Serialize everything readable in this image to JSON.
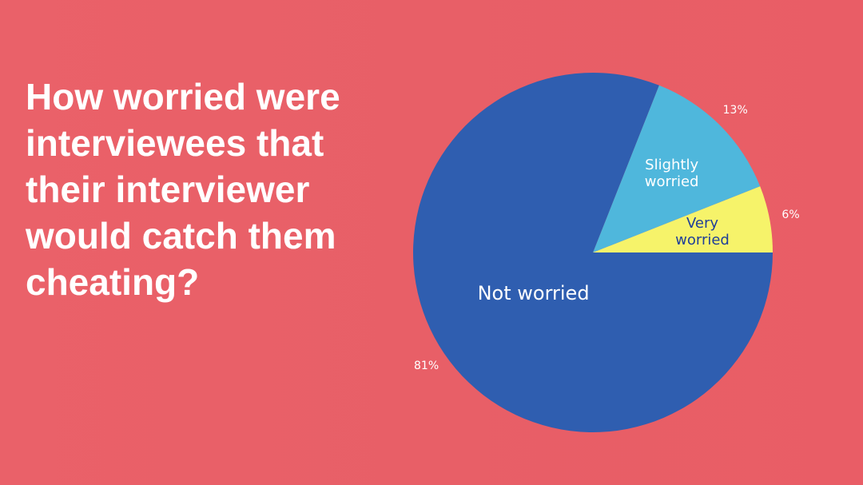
{
  "chart_data": {
    "type": "pie",
    "title": "How worried were interviewees that their interviewer would catch them cheating?",
    "categories": [
      "Very worried",
      "Slightly worried",
      "Not worried"
    ],
    "values": [
      6,
      13,
      81
    ],
    "value_labels": [
      "6%",
      "13%",
      "81%"
    ],
    "colors": [
      "#f6f36a",
      "#4fb7dc",
      "#2f5eb0"
    ]
  }
}
